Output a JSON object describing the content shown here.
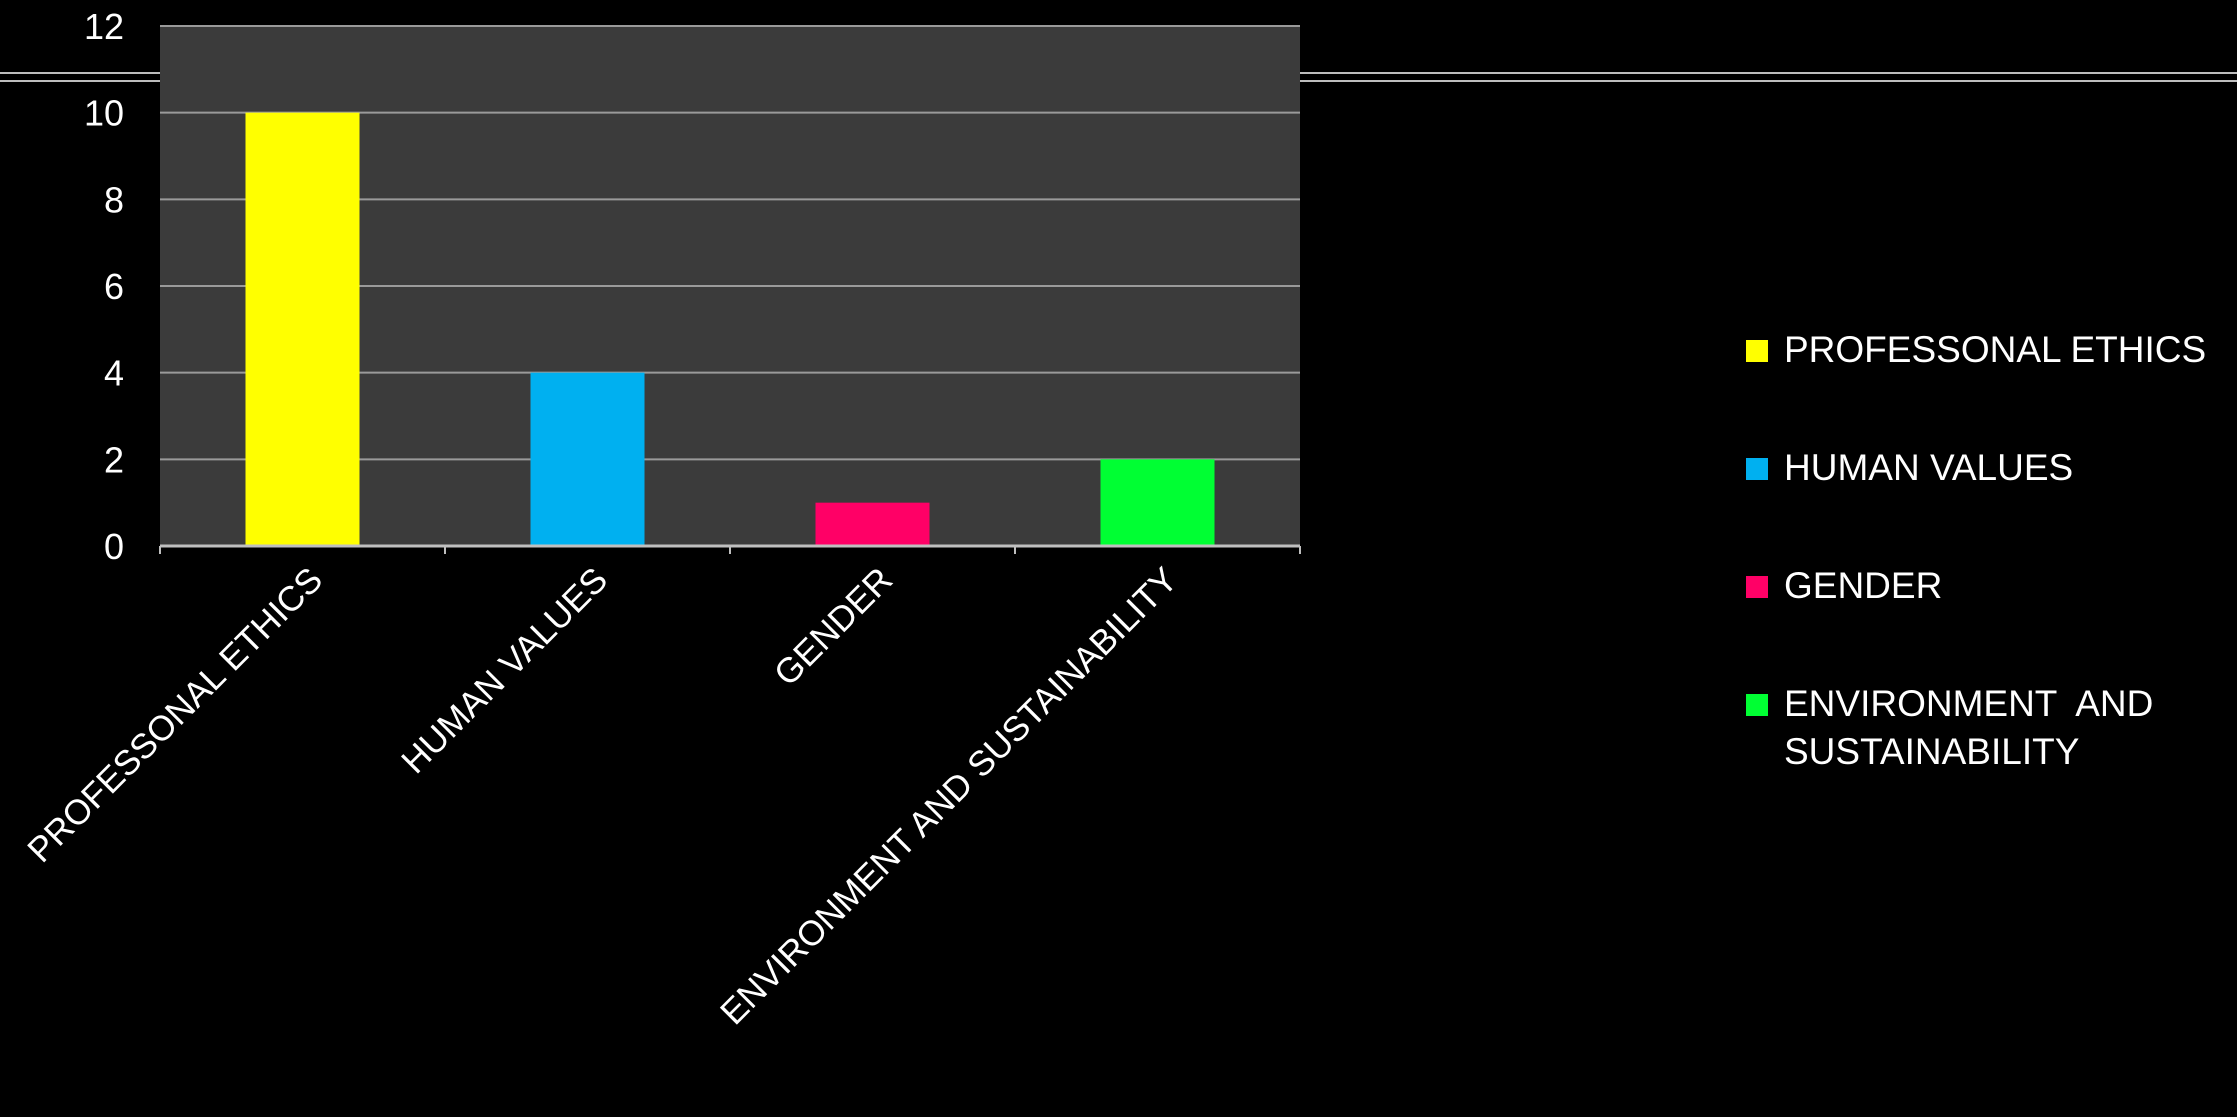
{
  "chart_data": {
    "type": "bar",
    "categories": [
      "PROFESSONAL ETHICS",
      "HUMAN VALUES",
      "GENDER",
      "ENVIRONMENT  AND SUSTAINABILITY"
    ],
    "values": [
      10,
      4,
      1,
      2
    ],
    "colors": [
      "#ffff00",
      "#00b0f0",
      "#ff0066",
      "#00ff33"
    ],
    "ylim": [
      0,
      12
    ],
    "yticks": [
      "0",
      "2",
      "4",
      "6",
      "8",
      "10",
      "12"
    ],
    "grid": true,
    "legend_position": "right",
    "legend": [
      {
        "label": "PROFESSONAL ETHICS",
        "color": "#ffff00"
      },
      {
        "label": "HUMAN VALUES",
        "color": "#00b0f0"
      },
      {
        "label": "GENDER",
        "color": "#ff0066"
      },
      {
        "label": "ENVIRONMENT  AND SUSTAINABILITY",
        "color": "#00ff33"
      }
    ]
  }
}
